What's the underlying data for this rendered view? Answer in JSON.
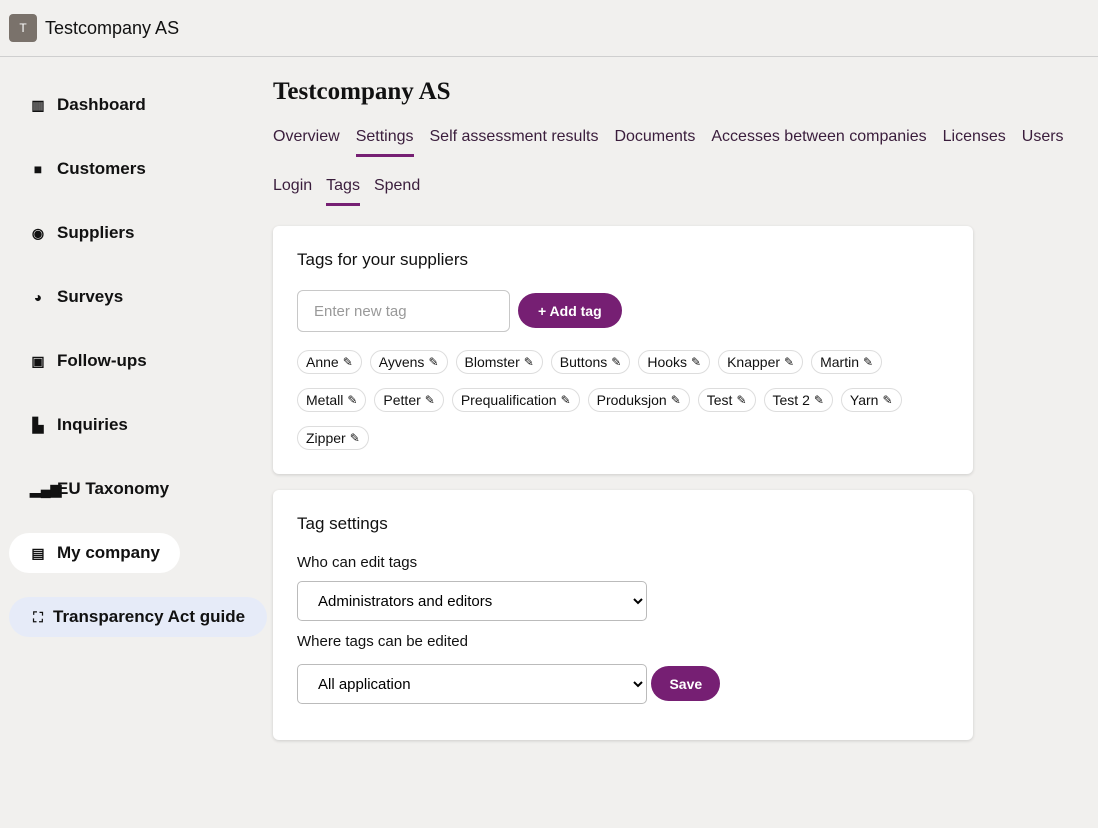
{
  "header": {
    "logo_letter": "T",
    "company": "Testcompany AS"
  },
  "sidebar": {
    "items": [
      {
        "label": "Dashboard",
        "icon": "columns-icon"
      },
      {
        "label": "Customers",
        "icon": "briefcase-icon"
      },
      {
        "label": "Suppliers",
        "icon": "globe-icon"
      },
      {
        "label": "Surveys",
        "icon": "pie-chart-icon"
      },
      {
        "label": "Follow-ups",
        "icon": "clipboard-check-icon"
      },
      {
        "label": "Inquiries",
        "icon": "file-chart-icon"
      },
      {
        "label": "EU Taxonomy",
        "icon": "bar-chart-icon"
      },
      {
        "label": "My company",
        "icon": "building-icon",
        "active": true
      }
    ],
    "guide": {
      "label": "Transparency Act guide",
      "icon": "expand-icon"
    }
  },
  "main": {
    "title": "Testcompany AS",
    "tabs": [
      "Overview",
      "Settings",
      "Self assessment results",
      "Documents",
      "Accesses between companies",
      "Licenses",
      "Users"
    ],
    "selected_tab": "Settings",
    "subtabs": [
      "Login",
      "Tags",
      "Spend"
    ],
    "selected_subtab": "Tags",
    "tags_card": {
      "title": "Tags for your suppliers",
      "placeholder": "Enter new tag",
      "add_label": "+ Add tag",
      "tags": [
        "Anne",
        "Ayvens",
        "Blomster",
        "Buttons",
        "Hooks",
        "Knapper",
        "Martin",
        "Metall",
        "Petter",
        "Prequalification",
        "Produksjon",
        "Test",
        "Test 2",
        "Yarn",
        "Zipper"
      ]
    },
    "settings_card": {
      "title": "Tag settings",
      "who_label": "Who can edit tags",
      "who_value": "Administrators and editors",
      "where_label": "Where tags can be edited",
      "where_value": "All application",
      "save_label": "Save"
    }
  },
  "colors": {
    "accent": "#761f73",
    "background": "#f1f0ee"
  }
}
